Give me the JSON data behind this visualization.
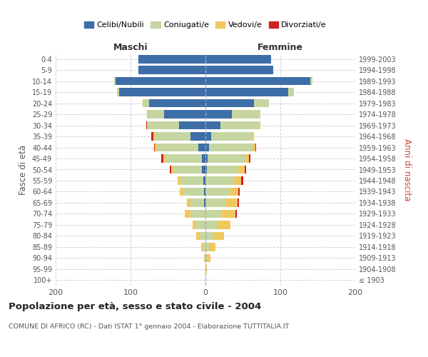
{
  "age_groups": [
    "100+",
    "95-99",
    "90-94",
    "85-89",
    "80-84",
    "75-79",
    "70-74",
    "65-69",
    "60-64",
    "55-59",
    "50-54",
    "45-49",
    "40-44",
    "35-39",
    "30-34",
    "25-29",
    "20-24",
    "15-19",
    "10-14",
    "5-9",
    "0-4"
  ],
  "birth_years": [
    "≤ 1903",
    "1904-1908",
    "1909-1913",
    "1914-1918",
    "1919-1923",
    "1924-1928",
    "1929-1933",
    "1934-1938",
    "1939-1943",
    "1944-1948",
    "1949-1953",
    "1954-1958",
    "1959-1963",
    "1964-1968",
    "1969-1973",
    "1974-1978",
    "1979-1983",
    "1984-1988",
    "1989-1993",
    "1994-1998",
    "1999-2003"
  ],
  "colors": {
    "celibi": "#3d6ea8",
    "coniugati": "#c5d6a0",
    "vedovi": "#f0c860",
    "divorziati": "#cc2222"
  },
  "maschi": {
    "celibi": [
      0,
      0,
      0,
      0,
      0,
      0,
      0,
      2,
      2,
      3,
      5,
      5,
      10,
      20,
      35,
      55,
      75,
      115,
      120,
      90,
      90
    ],
    "coniugati": [
      0,
      0,
      0,
      3,
      8,
      12,
      20,
      18,
      28,
      30,
      38,
      48,
      55,
      48,
      42,
      22,
      8,
      3,
      2,
      0,
      0
    ],
    "vedovi": [
      0,
      0,
      2,
      3,
      4,
      5,
      8,
      5,
      4,
      4,
      3,
      3,
      3,
      2,
      1,
      1,
      1,
      0,
      0,
      0,
      0
    ],
    "divorziati": [
      0,
      0,
      0,
      0,
      0,
      0,
      0,
      0,
      0,
      0,
      2,
      3,
      1,
      2,
      1,
      0,
      0,
      0,
      0,
      0,
      0
    ]
  },
  "femmine": {
    "celibi": [
      0,
      0,
      0,
      0,
      0,
      0,
      0,
      0,
      0,
      0,
      2,
      3,
      5,
      8,
      20,
      35,
      65,
      110,
      140,
      90,
      88
    ],
    "coniugati": [
      0,
      0,
      2,
      5,
      10,
      15,
      22,
      28,
      32,
      38,
      42,
      50,
      58,
      55,
      52,
      38,
      20,
      8,
      3,
      0,
      0
    ],
    "vedovi": [
      0,
      2,
      5,
      8,
      15,
      18,
      18,
      15,
      12,
      10,
      8,
      5,
      4,
      2,
      1,
      0,
      0,
      0,
      0,
      0,
      0
    ],
    "divorziati": [
      0,
      0,
      0,
      0,
      0,
      0,
      2,
      2,
      2,
      2,
      2,
      2,
      1,
      0,
      0,
      0,
      0,
      0,
      0,
      0,
      0
    ]
  },
  "title": "Popolazione per età, sesso e stato civile - 2004",
  "subtitle": "COMUNE DI AFRICO (RC) - Dati ISTAT 1° gennaio 2004 - Elaborazione TUTTITALIA.IT",
  "ylabel_left": "Fasce di età",
  "ylabel_right": "Anni di nascita",
  "xlabel_maschi": "Maschi",
  "xlabel_femmine": "Femmine",
  "xlim": 200,
  "legend_labels": [
    "Celibi/Nubili",
    "Coniugati/e",
    "Vedovi/e",
    "Divorziati/e"
  ],
  "background_color": "#ffffff",
  "grid_color": "#cccccc"
}
